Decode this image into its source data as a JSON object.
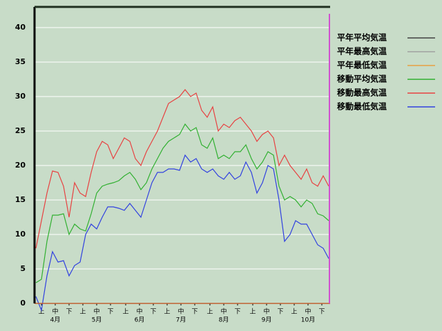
{
  "chart_data": {
    "type": "line",
    "x": [
      1,
      5,
      9,
      13,
      17,
      21,
      25,
      29,
      33,
      37,
      41,
      45,
      49,
      53,
      57,
      61,
      65,
      69,
      73,
      77,
      81,
      85,
      89,
      93,
      97,
      101,
      105,
      109,
      113,
      117,
      121,
      125,
      129,
      133,
      137,
      141,
      145,
      149,
      153,
      157,
      161,
      165,
      169,
      173,
      177,
      181,
      185,
      189,
      193,
      197,
      201,
      205,
      209,
      213
    ],
    "xlim": [
      0,
      214
    ],
    "xticks": [
      {
        "value": 5,
        "label": "上"
      },
      {
        "value": 15,
        "label": "中"
      },
      {
        "value": 25,
        "label": "下"
      },
      {
        "value": 35,
        "label": "上"
      },
      {
        "value": 45,
        "label": "中"
      },
      {
        "value": 55,
        "label": "下"
      },
      {
        "value": 66,
        "label": "上"
      },
      {
        "value": 76,
        "label": "中"
      },
      {
        "value": 86,
        "label": "下"
      },
      {
        "value": 96,
        "label": "上"
      },
      {
        "value": 106,
        "label": "中"
      },
      {
        "value": 116,
        "label": "下"
      },
      {
        "value": 127,
        "label": "上"
      },
      {
        "value": 137,
        "label": "中"
      },
      {
        "value": 147,
        "label": "下"
      },
      {
        "value": 158,
        "label": "上"
      },
      {
        "value": 168,
        "label": "中"
      },
      {
        "value": 178,
        "label": "下"
      },
      {
        "value": 188,
        "label": "上"
      },
      {
        "value": 198,
        "label": "中"
      },
      {
        "value": 208,
        "label": "下"
      }
    ],
    "month_ticks": [
      {
        "value": 15,
        "label": "4月"
      },
      {
        "value": 45,
        "label": "5月"
      },
      {
        "value": 76,
        "label": "6月"
      },
      {
        "value": 106,
        "label": "7月"
      },
      {
        "value": 137,
        "label": "8月"
      },
      {
        "value": 168,
        "label": "9月"
      },
      {
        "value": 198,
        "label": "10月"
      }
    ],
    "ylim": [
      0,
      43
    ],
    "yticks": [
      0,
      5,
      10,
      15,
      20,
      25,
      30,
      35,
      40
    ],
    "grid": true,
    "vline": {
      "x": 213.5,
      "color": "#d050d0"
    },
    "series": [
      {
        "name": "平年平均気温",
        "color": "#404040",
        "values": [
          null,
          null,
          null,
          null,
          null,
          null,
          null,
          null,
          null,
          null,
          null,
          null,
          null,
          null,
          null,
          null,
          null,
          null,
          null,
          null,
          null,
          null,
          null,
          null,
          null,
          null,
          null,
          null,
          null,
          null,
          null,
          null,
          null,
          null,
          null,
          null,
          null,
          null,
          null,
          null,
          null,
          null,
          null,
          null,
          null,
          null,
          null,
          null,
          null,
          null,
          null,
          null,
          null,
          null
        ]
      },
      {
        "name": "平年最高気温",
        "color": "#a0a0a0",
        "values": [
          null,
          null,
          null,
          null,
          null,
          null,
          null,
          null,
          null,
          null,
          null,
          null,
          null,
          null,
          null,
          null,
          null,
          null,
          null,
          null,
          null,
          null,
          null,
          null,
          null,
          null,
          null,
          null,
          null,
          null,
          null,
          null,
          null,
          null,
          null,
          null,
          null,
          null,
          null,
          null,
          null,
          null,
          null,
          null,
          null,
          null,
          null,
          null,
          null,
          null,
          null,
          null,
          null,
          null
        ]
      },
      {
        "name": "平年最低気温",
        "color": "#e8a040",
        "values": [
          null,
          null,
          null,
          null,
          null,
          null,
          null,
          null,
          null,
          null,
          null,
          null,
          null,
          null,
          null,
          null,
          null,
          null,
          null,
          null,
          null,
          null,
          null,
          null,
          null,
          null,
          null,
          null,
          null,
          null,
          null,
          null,
          null,
          null,
          null,
          null,
          null,
          null,
          null,
          null,
          null,
          null,
          null,
          null,
          null,
          null,
          null,
          null,
          null,
          null,
          null,
          null,
          null,
          null
        ]
      },
      {
        "name": "移動平均気温",
        "color": "#30b030",
        "values": [
          3,
          3.5,
          9,
          12.8,
          12.8,
          13,
          10,
          11.5,
          10.8,
          10.5,
          13,
          16,
          17,
          17.3,
          17.5,
          17.8,
          18.5,
          19,
          18,
          16.5,
          17.5,
          19.5,
          21,
          22.5,
          23.5,
          24,
          24.5,
          26,
          25,
          25.5,
          23,
          22.5,
          24,
          21,
          21.5,
          21,
          22,
          22,
          23,
          21,
          19.5,
          20.5,
          22,
          21.5,
          17,
          15,
          15.5,
          15,
          14,
          15,
          14.5,
          13,
          12.7,
          12
        ]
      },
      {
        "name": "移動最高気温",
        "color": "#e84040",
        "values": [
          8,
          12,
          16,
          19.2,
          19,
          17,
          12.5,
          17.5,
          16,
          15.5,
          19,
          22,
          23.5,
          23,
          21,
          22.5,
          24,
          23.5,
          21,
          20,
          22,
          23.5,
          25,
          27,
          29,
          29.5,
          30,
          31,
          30,
          30.5,
          28,
          27,
          28.5,
          25,
          26,
          25.5,
          26.5,
          27,
          26,
          25,
          23.5,
          24.5,
          25,
          24,
          20,
          21.5,
          20,
          19,
          18,
          19.5,
          17.5,
          17,
          18.5,
          17
        ]
      },
      {
        "name": "移動最低気温",
        "color": "#3040e0",
        "values": [
          1,
          -1,
          4,
          7.5,
          6,
          6.2,
          4,
          5.5,
          6,
          10,
          11.5,
          10.8,
          12.5,
          14,
          14,
          13.8,
          13.5,
          14.5,
          13.5,
          12.5,
          15,
          17.5,
          19,
          19,
          19.5,
          19.5,
          19.3,
          21.5,
          20.5,
          21,
          19.5,
          19,
          19.5,
          18.5,
          18,
          19,
          18,
          18.5,
          20.5,
          19,
          16,
          17.5,
          20,
          19.5,
          15,
          9,
          10,
          12,
          11.5,
          11.5,
          10,
          8.5,
          8,
          6.5
        ]
      }
    ]
  }
}
